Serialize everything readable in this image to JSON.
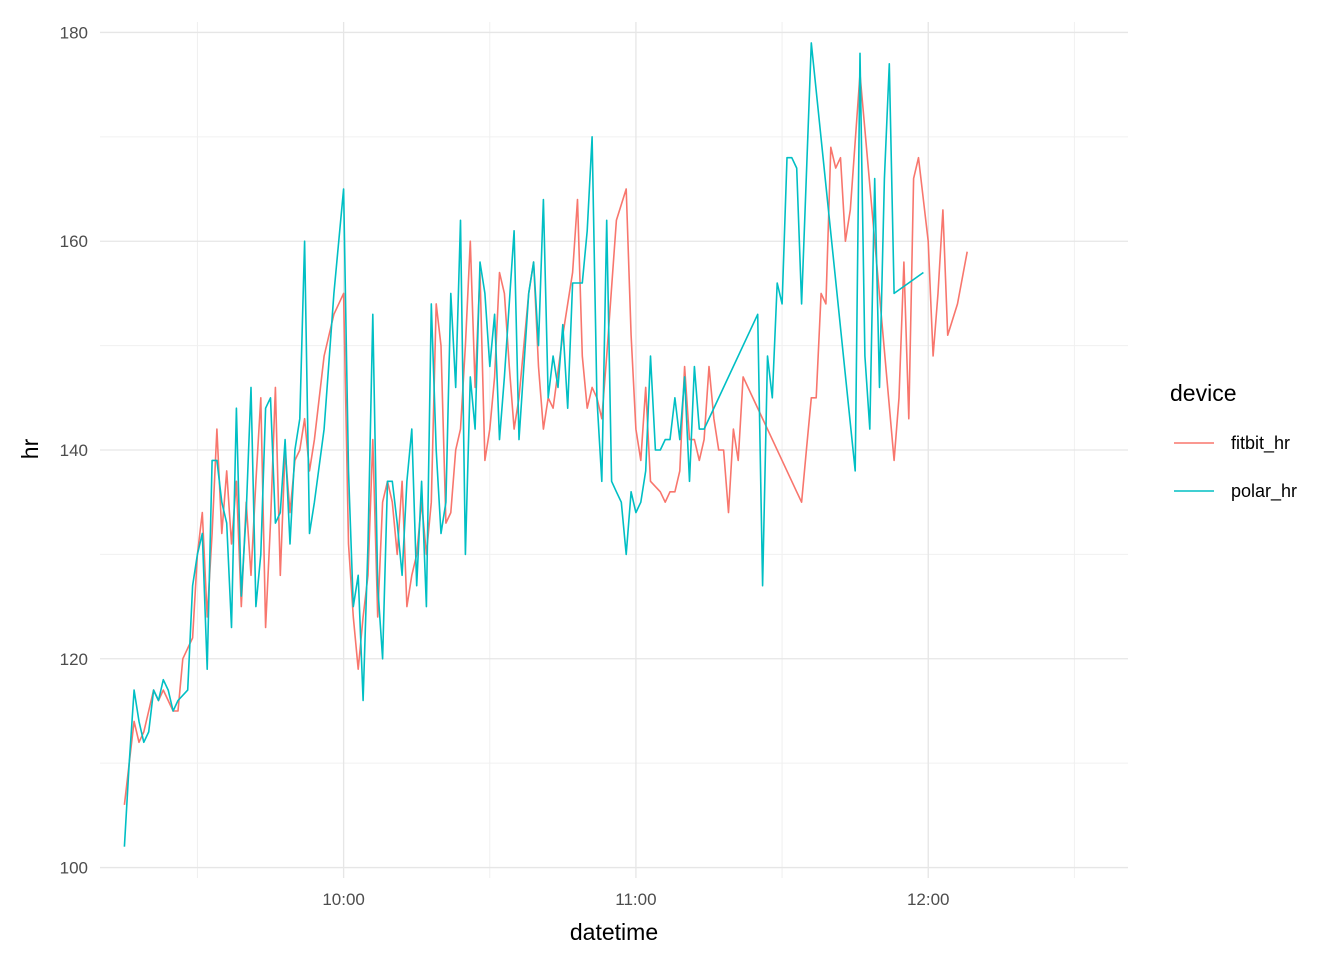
{
  "chart_data": {
    "type": "line",
    "title": "",
    "xlabel": "datetime",
    "ylabel": "hr",
    "x_unit": "time of day (HH:MM)",
    "xlim": [
      "09:10",
      "12:41"
    ],
    "ylim": [
      99,
      181
    ],
    "x_ticks": [
      "10:00",
      "11:00",
      "12:00"
    ],
    "y_ticks": [
      100,
      120,
      140,
      160,
      180
    ],
    "grid": true,
    "legend": {
      "title": "device",
      "position": "right"
    },
    "series": [
      {
        "name": "fitbit_hr",
        "color": "#F8766D",
        "points": [
          [
            "09:15",
            106
          ],
          [
            "09:16",
            110
          ],
          [
            "09:17",
            114
          ],
          [
            "09:18",
            112
          ],
          [
            "09:19",
            113
          ],
          [
            "09:20",
            115
          ],
          [
            "09:21",
            117
          ],
          [
            "09:22",
            116
          ],
          [
            "09:23",
            117
          ],
          [
            "09:24",
            116
          ],
          [
            "09:25",
            115
          ],
          [
            "09:26",
            115
          ],
          [
            "09:27",
            120
          ],
          [
            "09:28",
            121
          ],
          [
            "09:29",
            122
          ],
          [
            "09:30",
            130
          ],
          [
            "09:31",
            134
          ],
          [
            "09:32",
            124
          ],
          [
            "09:33",
            132
          ],
          [
            "09:34",
            142
          ],
          [
            "09:35",
            132
          ],
          [
            "09:36",
            138
          ],
          [
            "09:37",
            131
          ],
          [
            "09:38",
            137
          ],
          [
            "09:39",
            125
          ],
          [
            "09:40",
            135
          ],
          [
            "09:41",
            128
          ],
          [
            "09:42",
            137
          ],
          [
            "09:43",
            145
          ],
          [
            "09:44",
            123
          ],
          [
            "09:45",
            133
          ],
          [
            "09:46",
            146
          ],
          [
            "09:47",
            128
          ],
          [
            "09:48",
            140
          ],
          [
            "09:49",
            134
          ],
          [
            "09:50",
            139
          ],
          [
            "09:51",
            140
          ],
          [
            "09:52",
            143
          ],
          [
            "09:53",
            138
          ],
          [
            "09:54",
            141
          ],
          [
            "09:56",
            149
          ],
          [
            "09:58",
            153
          ],
          [
            "10:00",
            155
          ],
          [
            "10:01",
            131
          ],
          [
            "10:02",
            124
          ],
          [
            "10:03",
            119
          ],
          [
            "10:04",
            124
          ],
          [
            "10:05",
            128
          ],
          [
            "10:06",
            141
          ],
          [
            "10:07",
            124
          ],
          [
            "10:08",
            135
          ],
          [
            "10:09",
            137
          ],
          [
            "10:10",
            135
          ],
          [
            "10:11",
            130
          ],
          [
            "10:12",
            137
          ],
          [
            "10:13",
            125
          ],
          [
            "10:14",
            128
          ],
          [
            "10:15",
            130
          ],
          [
            "10:16",
            135
          ],
          [
            "10:17",
            130
          ],
          [
            "10:18",
            135
          ],
          [
            "10:19",
            154
          ],
          [
            "10:20",
            150
          ],
          [
            "10:21",
            133
          ],
          [
            "10:22",
            134
          ],
          [
            "10:23",
            140
          ],
          [
            "10:24",
            142
          ],
          [
            "10:25",
            150
          ],
          [
            "10:26",
            160
          ],
          [
            "10:27",
            146
          ],
          [
            "10:28",
            157
          ],
          [
            "10:29",
            139
          ],
          [
            "10:30",
            142
          ],
          [
            "10:31",
            147
          ],
          [
            "10:32",
            157
          ],
          [
            "10:33",
            155
          ],
          [
            "10:34",
            148
          ],
          [
            "10:35",
            142
          ],
          [
            "10:36",
            145
          ],
          [
            "10:38",
            155
          ],
          [
            "10:39",
            158
          ],
          [
            "10:40",
            148
          ],
          [
            "10:41",
            142
          ],
          [
            "10:42",
            145
          ],
          [
            "10:43",
            144
          ],
          [
            "10:45",
            151
          ],
          [
            "10:47",
            157
          ],
          [
            "10:48",
            164
          ],
          [
            "10:49",
            149
          ],
          [
            "10:50",
            144
          ],
          [
            "10:51",
            146
          ],
          [
            "10:52",
            145
          ],
          [
            "10:53",
            143
          ],
          [
            "10:54",
            149
          ],
          [
            "10:56",
            162
          ],
          [
            "10:58",
            165
          ],
          [
            "10:59",
            151
          ],
          [
            "11:00",
            142
          ],
          [
            "11:01",
            139
          ],
          [
            "11:02",
            146
          ],
          [
            "11:03",
            137
          ],
          [
            "11:05",
            136
          ],
          [
            "11:06",
            135
          ],
          [
            "11:07",
            136
          ],
          [
            "11:08",
            136
          ],
          [
            "11:09",
            138
          ],
          [
            "11:10",
            148
          ],
          [
            "11:11",
            141
          ],
          [
            "11:12",
            141
          ],
          [
            "11:13",
            139
          ],
          [
            "11:14",
            141
          ],
          [
            "11:15",
            148
          ],
          [
            "11:16",
            143
          ],
          [
            "11:17",
            140
          ],
          [
            "11:18",
            140
          ],
          [
            "11:19",
            134
          ],
          [
            "11:20",
            142
          ],
          [
            "11:21",
            139
          ],
          [
            "11:22",
            147
          ],
          [
            "11:33",
            136
          ],
          [
            "11:34",
            135
          ],
          [
            "11:35",
            140
          ],
          [
            "11:36",
            145
          ],
          [
            "11:37",
            145
          ],
          [
            "11:38",
            155
          ],
          [
            "11:39",
            154
          ],
          [
            "11:40",
            169
          ],
          [
            "11:41",
            167
          ],
          [
            "11:42",
            168
          ],
          [
            "11:43",
            160
          ],
          [
            "11:44",
            163
          ],
          [
            "11:46",
            176
          ],
          [
            "11:53",
            139
          ],
          [
            "11:54",
            145
          ],
          [
            "11:55",
            158
          ],
          [
            "11:56",
            143
          ],
          [
            "11:57",
            166
          ],
          [
            "11:58",
            168
          ],
          [
            "12:00",
            160
          ],
          [
            "12:01",
            149
          ],
          [
            "12:02",
            155
          ],
          [
            "12:03",
            163
          ],
          [
            "12:04",
            151
          ],
          [
            "12:06",
            154
          ],
          [
            "12:08",
            159
          ]
        ]
      },
      {
        "name": "polar_hr",
        "color": "#00BFC4",
        "points": [
          [
            "09:15",
            102
          ],
          [
            "09:16",
            110
          ],
          [
            "09:17",
            117
          ],
          [
            "09:18",
            114
          ],
          [
            "09:19",
            112
          ],
          [
            "09:20",
            113
          ],
          [
            "09:21",
            117
          ],
          [
            "09:22",
            116
          ],
          [
            "09:23",
            118
          ],
          [
            "09:24",
            117
          ],
          [
            "09:25",
            115
          ],
          [
            "09:26",
            116
          ],
          [
            "09:28",
            117
          ],
          [
            "09:29",
            127
          ],
          [
            "09:30",
            130
          ],
          [
            "09:31",
            132
          ],
          [
            "09:32",
            119
          ],
          [
            "09:33",
            139
          ],
          [
            "09:34",
            139
          ],
          [
            "09:35",
            135
          ],
          [
            "09:36",
            133
          ],
          [
            "09:37",
            123
          ],
          [
            "09:38",
            144
          ],
          [
            "09:39",
            126
          ],
          [
            "09:40",
            134
          ],
          [
            "09:41",
            146
          ],
          [
            "09:42",
            125
          ],
          [
            "09:43",
            130
          ],
          [
            "09:44",
            144
          ],
          [
            "09:45",
            145
          ],
          [
            "09:46",
            133
          ],
          [
            "09:47",
            134
          ],
          [
            "09:48",
            141
          ],
          [
            "09:49",
            131
          ],
          [
            "09:50",
            140
          ],
          [
            "09:51",
            143
          ],
          [
            "09:52",
            160
          ],
          [
            "09:53",
            132
          ],
          [
            "09:54",
            135
          ],
          [
            "09:56",
            142
          ],
          [
            "09:58",
            155
          ],
          [
            "10:00",
            165
          ],
          [
            "10:01",
            138
          ],
          [
            "10:02",
            125
          ],
          [
            "10:03",
            128
          ],
          [
            "10:04",
            116
          ],
          [
            "10:05",
            131
          ],
          [
            "10:06",
            153
          ],
          [
            "10:07",
            127
          ],
          [
            "10:08",
            120
          ],
          [
            "10:09",
            137
          ],
          [
            "10:10",
            137
          ],
          [
            "10:11",
            133
          ],
          [
            "10:12",
            128
          ],
          [
            "10:13",
            137
          ],
          [
            "10:14",
            142
          ],
          [
            "10:15",
            127
          ],
          [
            "10:16",
            137
          ],
          [
            "10:17",
            125
          ],
          [
            "10:18",
            154
          ],
          [
            "10:19",
            140
          ],
          [
            "10:20",
            132
          ],
          [
            "10:21",
            135
          ],
          [
            "10:22",
            155
          ],
          [
            "10:23",
            146
          ],
          [
            "10:24",
            162
          ],
          [
            "10:25",
            130
          ],
          [
            "10:26",
            147
          ],
          [
            "10:27",
            142
          ],
          [
            "10:28",
            158
          ],
          [
            "10:29",
            155
          ],
          [
            "10:30",
            148
          ],
          [
            "10:31",
            153
          ],
          [
            "10:32",
            141
          ],
          [
            "10:33",
            147
          ],
          [
            "10:35",
            161
          ],
          [
            "10:36",
            141
          ],
          [
            "10:38",
            155
          ],
          [
            "10:39",
            158
          ],
          [
            "10:40",
            150
          ],
          [
            "10:41",
            164
          ],
          [
            "10:42",
            145
          ],
          [
            "10:43",
            149
          ],
          [
            "10:44",
            146
          ],
          [
            "10:45",
            152
          ],
          [
            "10:46",
            144
          ],
          [
            "10:47",
            156
          ],
          [
            "10:48",
            156
          ],
          [
            "10:49",
            156
          ],
          [
            "10:50",
            161
          ],
          [
            "10:51",
            170
          ],
          [
            "10:52",
            145
          ],
          [
            "10:53",
            137
          ],
          [
            "10:54",
            162
          ],
          [
            "10:55",
            137
          ],
          [
            "10:56",
            136
          ],
          [
            "10:57",
            135
          ],
          [
            "10:58",
            130
          ],
          [
            "10:59",
            136
          ],
          [
            "11:00",
            134
          ],
          [
            "11:01",
            135
          ],
          [
            "11:02",
            138
          ],
          [
            "11:03",
            149
          ],
          [
            "11:04",
            140
          ],
          [
            "11:05",
            140
          ],
          [
            "11:06",
            141
          ],
          [
            "11:07",
            141
          ],
          [
            "11:08",
            145
          ],
          [
            "11:09",
            141
          ],
          [
            "11:10",
            147
          ],
          [
            "11:11",
            137
          ],
          [
            "11:12",
            148
          ],
          [
            "11:13",
            142
          ],
          [
            "11:14",
            142
          ],
          [
            "11:25",
            153
          ],
          [
            "11:26",
            127
          ],
          [
            "11:27",
            149
          ],
          [
            "11:28",
            145
          ],
          [
            "11:29",
            156
          ],
          [
            "11:30",
            154
          ],
          [
            "11:31",
            168
          ],
          [
            "11:32",
            168
          ],
          [
            "11:33",
            167
          ],
          [
            "11:34",
            154
          ],
          [
            "11:36",
            179
          ],
          [
            "11:45",
            138
          ],
          [
            "11:46",
            178
          ],
          [
            "11:47",
            149
          ],
          [
            "11:48",
            142
          ],
          [
            "11:49",
            166
          ],
          [
            "11:50",
            146
          ],
          [
            "11:51",
            166
          ],
          [
            "11:52",
            177
          ],
          [
            "11:53",
            155
          ],
          [
            "11:59",
            157
          ]
        ]
      }
    ]
  }
}
